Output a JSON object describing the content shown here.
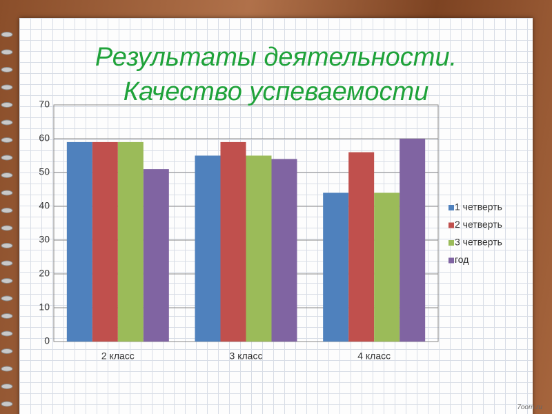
{
  "chart_data": {
    "type": "bar",
    "title": "Результаты деятельности. Качество успеваемости",
    "categories": [
      "2 класс",
      "3 класс",
      "4 класс"
    ],
    "series": [
      {
        "name": "1 четверть",
        "color": "#4f81bd",
        "values": [
          59,
          55,
          44
        ]
      },
      {
        "name": "2 четверть",
        "color": "#c0504d",
        "values": [
          59,
          59,
          56
        ]
      },
      {
        "name": "3 четверть",
        "color": "#9bbb59",
        "values": [
          59,
          55,
          44
        ]
      },
      {
        "name": "год",
        "color": "#8064a2",
        "values": [
          51,
          54,
          60
        ]
      }
    ],
    "ylim": [
      0,
      70
    ],
    "yticks": [
      0,
      10,
      20,
      30,
      40,
      50,
      60,
      70
    ],
    "grid": true,
    "legend": "right"
  },
  "watermark": "7oom.ru"
}
